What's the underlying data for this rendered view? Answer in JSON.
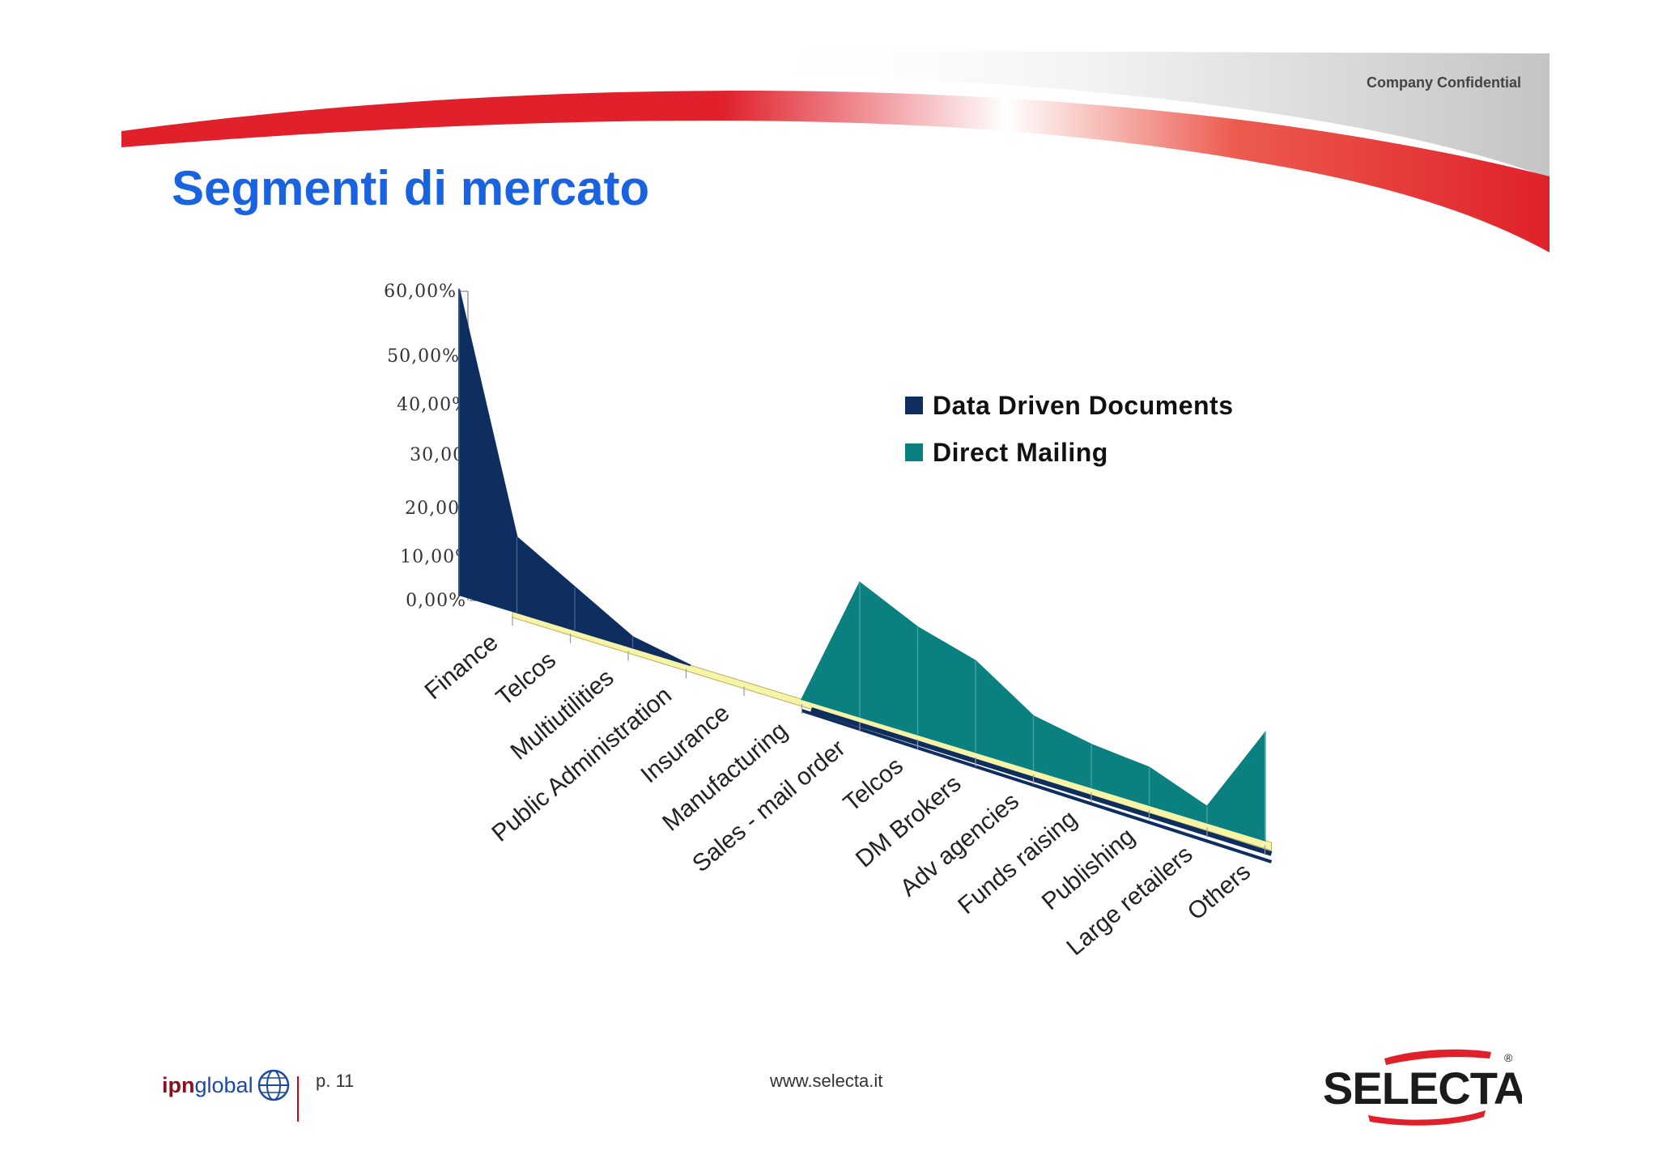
{
  "header": {
    "confidential": "Company Confidential",
    "title": "Segmenti di mercato"
  },
  "colors": {
    "accent_red": "#e0202a",
    "title_blue": "#1a63e0",
    "series_dark_navy": "#0d2e5f",
    "series_teal": "#0b8080",
    "floor_yellow": "#f7f4a8"
  },
  "chart_data": {
    "type": "area",
    "style": "3d",
    "ylim": [
      0,
      60
    ],
    "yticks": [
      "0,00%",
      "10,00%",
      "20,00%",
      "30,00%",
      "40,00%",
      "50,00%",
      "60,00%"
    ],
    "categories": [
      "Finance",
      "Telcos",
      "Multiutilities",
      "Public Administration",
      "Insurance",
      "Manufacturing",
      "Sales - mail order",
      "Telcos",
      "DM Brokers",
      "Adv agencies",
      "Funds raising",
      "Publishing",
      "Large retailers",
      "Others"
    ],
    "series": [
      {
        "name": "Data Driven Documents",
        "color": "#0d2e5f",
        "values": [
          57,
          14,
          8,
          2,
          0,
          0,
          0,
          0,
          0,
          0,
          0,
          0,
          0,
          0
        ]
      },
      {
        "name": "Direct Mailing",
        "color": "#0b8080",
        "values": [
          0,
          0,
          0,
          0,
          0,
          0,
          25,
          20,
          17,
          10,
          8,
          7,
          3,
          20
        ]
      }
    ],
    "legend_position": "right",
    "grid": false
  },
  "footer": {
    "partner_logo_bold": "ipn",
    "partner_logo_rest": "global",
    "page": "p. 11",
    "website": "www.selecta.it",
    "brand_logo": "SELECTA"
  }
}
